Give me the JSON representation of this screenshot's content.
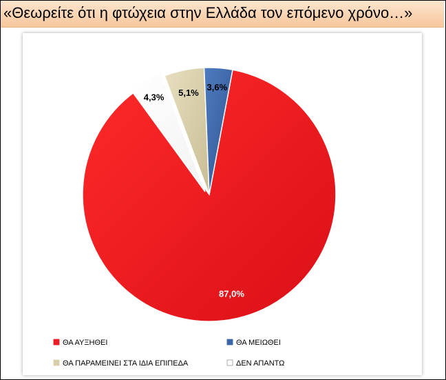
{
  "title": "«Θεωρείτε ότι η φτώχεια στην Ελλάδα τον επόμενο χρόνο…»",
  "chart_data": {
    "type": "pie",
    "title": "«Θεωρείτε ότι η φτώχεια στην Ελλάδα τον επόμενο χρόνο…»",
    "categories": [
      "ΘΑ ΑΥΞΗΘΕΙ",
      "ΘΑ ΜΕΙΩΘΕΙ",
      "ΘΑ ΠΑΡΑΜΕΙΝΕΙ ΣΤΑ ΙΔΙΑ ΕΠΙΠΕΔΑ",
      "ΔΕΝ ΑΠΑΝΤΩ"
    ],
    "values": [
      87.0,
      3.6,
      5.1,
      4.3
    ],
    "data_labels": [
      "87,0%",
      "3,6%",
      "5,1%",
      "4,3%"
    ],
    "colors": [
      "#ee1c24",
      "#3b65a6",
      "#d8ceab",
      "#ffffff"
    ],
    "legend_position": "bottom"
  }
}
